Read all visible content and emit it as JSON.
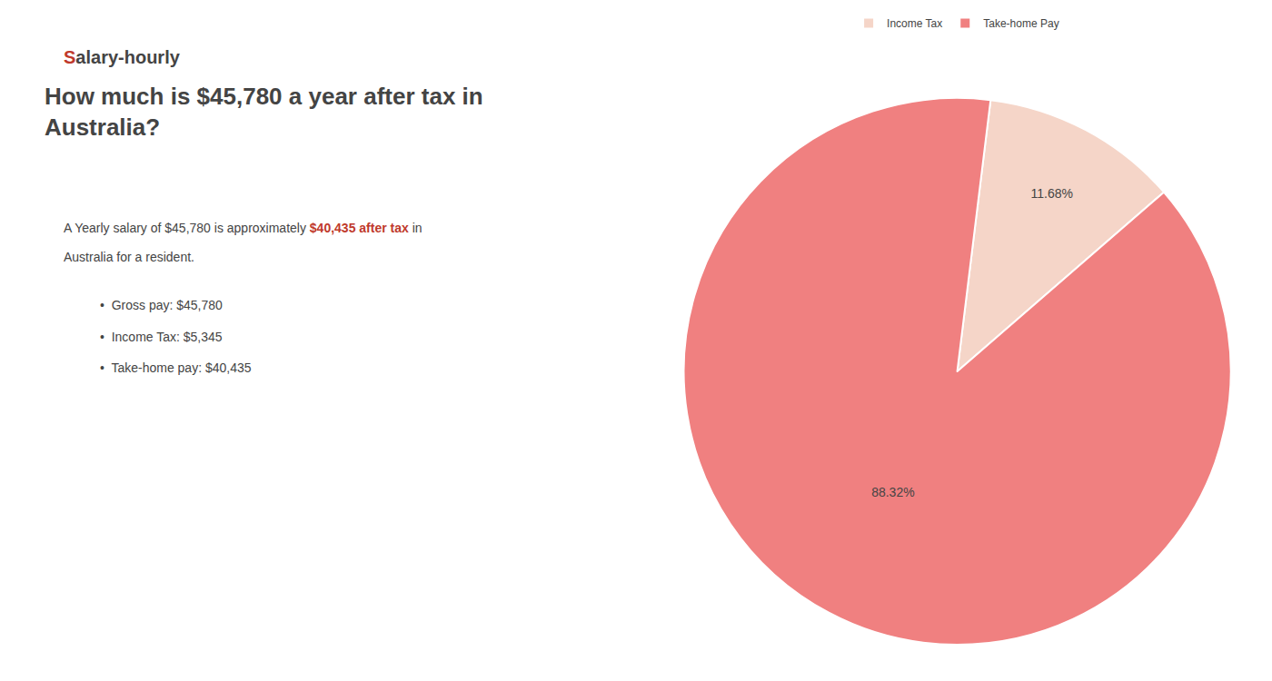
{
  "chart_data": {
    "type": "pie",
    "title": "How much is $45,780 a year after tax in\nAustralia?",
    "categories": [
      "Income Tax",
      "Take-home Pay"
    ],
    "values": [
      11.68,
      88.32
    ],
    "value_labels": [
      "11.68%",
      "88.32%"
    ],
    "colors": [
      "#f5d5c8",
      "#f08080"
    ],
    "data_labels": true,
    "legend": "top",
    "annotations": [
      {
        "text": "S",
        "color": "#c0392b"
      },
      {
        "text": "alary-hourly"
      },
      {
        "text": "A Yearly salary of $45,780 is approximately "
      },
      {
        "text": "$40,435 after tax",
        "color": "#c0392b"
      },
      {
        "text": " in"
      },
      {
        "text": "Australia for a resident."
      },
      {
        "text": "•  Gross pay: $45,780"
      },
      {
        "text": "•  Income Tax: $5,345"
      },
      {
        "text": "•  Take-home pay: $40,435"
      }
    ]
  }
}
